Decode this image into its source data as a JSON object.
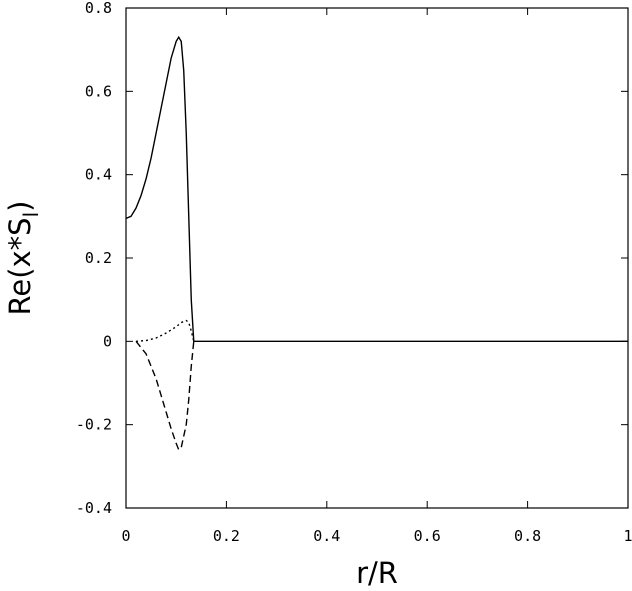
{
  "chart_data": {
    "type": "line",
    "x_label": "r/R",
    "y_label": {
      "text": "Re(x*S",
      "subscript": "l",
      "close": ")"
    },
    "xlim": [
      0,
      1
    ],
    "xticks": [
      0,
      0.2,
      0.4,
      0.6,
      0.8,
      1
    ],
    "ylim": [
      -0.4,
      0.8
    ],
    "yticks": [
      -0.4,
      -0.2,
      0,
      0.2,
      0.4,
      0.6,
      0.8
    ],
    "grid": false,
    "series": [
      {
        "color": "#000000",
        "dash": "none",
        "x": [
          0,
          0.01,
          0.02,
          0.03,
          0.04,
          0.05,
          0.06,
          0.07,
          0.08,
          0.09,
          0.1,
          0.105,
          0.11,
          0.115,
          0.12,
          0.125,
          0.13,
          0.135,
          0.2,
          0.4,
          0.6,
          0.8,
          1
        ],
        "values": [
          0.295,
          0.3,
          0.32,
          0.35,
          0.39,
          0.44,
          0.5,
          0.56,
          0.62,
          0.68,
          0.72,
          0.73,
          0.72,
          0.65,
          0.5,
          0.3,
          0.1,
          0,
          0,
          0,
          0,
          0,
          0
        ]
      },
      {
        "color": "#000000",
        "dash": "2,3",
        "x": [
          0.02,
          0.04,
          0.06,
          0.08,
          0.1,
          0.11,
          0.12,
          0.125,
          0.13,
          0.135
        ],
        "values": [
          0,
          0.002,
          0.008,
          0.02,
          0.035,
          0.045,
          0.05,
          0.045,
          0.025,
          0
        ]
      },
      {
        "color": "#000000",
        "dash": "7,4",
        "x": [
          0.02,
          0.04,
          0.06,
          0.08,
          0.09,
          0.1,
          0.105,
          0.11,
          0.12,
          0.125,
          0.13,
          0.135
        ],
        "values": [
          0,
          -0.03,
          -0.09,
          -0.17,
          -0.21,
          -0.245,
          -0.26,
          -0.255,
          -0.2,
          -0.14,
          -0.06,
          0
        ]
      }
    ]
  }
}
